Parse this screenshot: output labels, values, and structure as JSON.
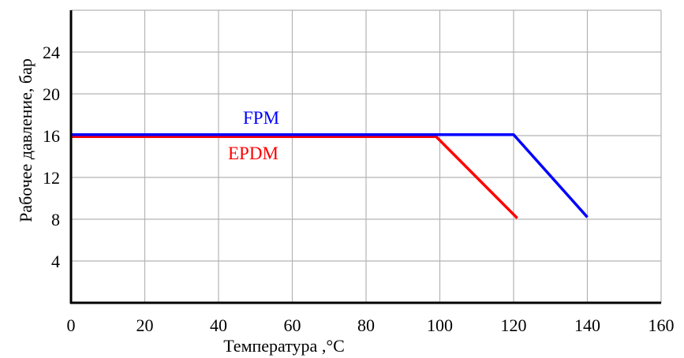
{
  "chart_data": {
    "type": "line",
    "title": "",
    "xlabel": "Температура ,°C",
    "ylabel": "Рабочее давление, бар",
    "xlim": [
      0,
      160
    ],
    "ylim": [
      0,
      28
    ],
    "x_ticks": [
      0,
      20,
      40,
      60,
      80,
      100,
      120,
      140,
      160
    ],
    "y_ticks": [
      4,
      8,
      12,
      16,
      20,
      24
    ],
    "grid": true,
    "series": [
      {
        "name": "FPM",
        "color": "#0000ff",
        "points": [
          [
            0,
            16.1
          ],
          [
            120,
            16.1
          ],
          [
            140,
            8.2
          ]
        ]
      },
      {
        "name": "EPDM",
        "color": "#ff0000",
        "points": [
          [
            0,
            15.9
          ],
          [
            99,
            15.9
          ],
          [
            121,
            8.1
          ]
        ]
      }
    ]
  }
}
